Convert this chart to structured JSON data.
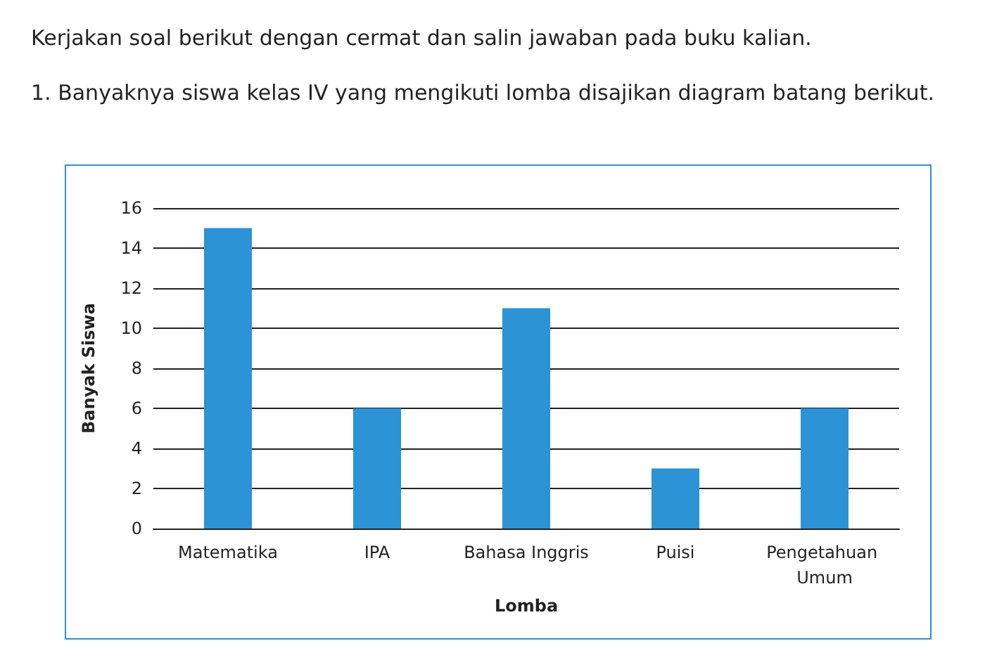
{
  "chart_data": {
    "type": "bar",
    "title": "Kerjakan soal berikut dengan cermat dan salin jawaban pada buku kalian.",
    "subtitle": "1. Banyaknya siswa kelas IV yang mengikuti lomba disajikan diagram batang berikut.",
    "xlabel": "Lomba",
    "ylabel": "Banyak Siswa",
    "categories": [
      "Matematika",
      "IPA",
      "Bahasa Inggris",
      "Puisi",
      "Pengetahuan Umum"
    ],
    "values": [
      15,
      6,
      11,
      3,
      6
    ],
    "color": "#2b93d6",
    "ylim": [
      0,
      16
    ],
    "yticks": [
      0,
      2,
      4,
      6,
      8,
      10,
      12,
      14,
      16
    ],
    "grid": "y"
  }
}
